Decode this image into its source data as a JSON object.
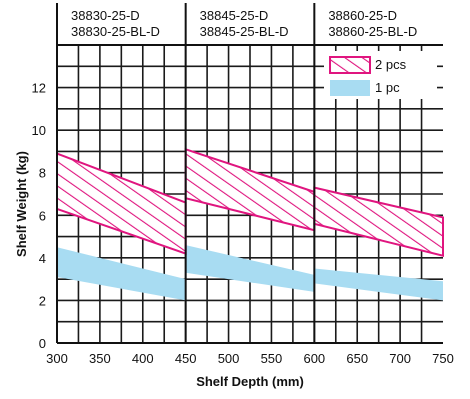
{
  "chart_data": {
    "type": "area",
    "xlabel": "Shelf Depth (mm)",
    "ylabel": "Shelf Weight (kg)",
    "xlim": [
      300,
      750
    ],
    "ylim": [
      0,
      14
    ],
    "grid": true,
    "x_ticks": [
      "300",
      "350",
      "400",
      "450",
      "500",
      "550",
      "600",
      "650",
      "700",
      "750"
    ],
    "y_ticks": [
      "0",
      "2",
      "4",
      "6",
      "8",
      "10",
      "12"
    ],
    "legend_position": "top-right",
    "model_groups": [
      {
        "label_1": "38830-25-D",
        "label_2": "38830-25-BL-D",
        "x_range": [
          300,
          450
        ]
      },
      {
        "label_1": "38845-25-D",
        "label_2": "38845-25-BL-D",
        "x_range": [
          450,
          600
        ]
      },
      {
        "label_1": "38860-25-D",
        "label_2": "38860-25-BL-D",
        "x_range": [
          600,
          750
        ]
      }
    ],
    "series": [
      {
        "name": "2 pcs",
        "style": "hatched",
        "color": "#e0157f",
        "bands": [
          {
            "x": [
              300,
              450
            ],
            "upper": [
              8.9,
              6.6
            ],
            "lower": [
              6.3,
              4.2
            ]
          },
          {
            "x": [
              450,
              600
            ],
            "upper": [
              9.1,
              7.1
            ],
            "lower": [
              6.8,
              5.3
            ]
          },
          {
            "x": [
              600,
              750
            ],
            "upper": [
              7.3,
              5.9
            ],
            "lower": [
              5.6,
              4.1
            ]
          }
        ]
      },
      {
        "name": "1 pc",
        "style": "filled",
        "color": "#a8dcf2",
        "bands": [
          {
            "x": [
              300,
              450
            ],
            "upper": [
              4.5,
              3.0
            ],
            "lower": [
              3.1,
              2.0
            ]
          },
          {
            "x": [
              450,
              600
            ],
            "upper": [
              4.6,
              3.2
            ],
            "lower": [
              3.3,
              2.4
            ]
          },
          {
            "x": [
              600,
              750
            ],
            "upper": [
              3.5,
              2.9
            ],
            "lower": [
              2.8,
              2.0
            ]
          }
        ]
      }
    ]
  }
}
